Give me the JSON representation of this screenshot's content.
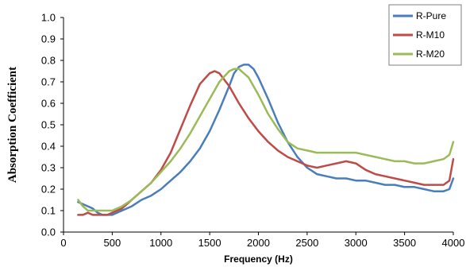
{
  "chart_data": {
    "type": "line",
    "title": "",
    "xlabel": "Frequency (Hz)",
    "ylabel": "Absorption Coefficient",
    "xlim": [
      0,
      4000
    ],
    "ylim": [
      0.0,
      1.0
    ],
    "x_ticks": [
      0,
      500,
      1000,
      1500,
      2000,
      2500,
      3000,
      3500,
      4000
    ],
    "y_ticks": [
      0.0,
      0.1,
      0.2,
      0.3,
      0.4,
      0.5,
      0.6,
      0.7,
      0.8,
      0.9,
      1.0
    ],
    "x_tick_labels": [
      "0",
      "500",
      "1000",
      "1500",
      "2000",
      "2500",
      "3000",
      "3500",
      "4000"
    ],
    "y_tick_labels": [
      "0.0",
      "0.1",
      "0.2",
      "0.3",
      "0.4",
      "0.5",
      "0.6",
      "0.7",
      "0.8",
      "0.9",
      "1.0"
    ],
    "grid": false,
    "legend_position": "top-right",
    "series": [
      {
        "name": "R-Pure",
        "color": "#4A7EBB",
        "x": [
          150,
          200,
          250,
          300,
          350,
          400,
          450,
          500,
          600,
          700,
          800,
          900,
          1000,
          1100,
          1200,
          1300,
          1400,
          1500,
          1600,
          1700,
          1750,
          1800,
          1850,
          1900,
          1950,
          2000,
          2100,
          2200,
          2300,
          2400,
          2500,
          2600,
          2700,
          2800,
          2900,
          3000,
          3100,
          3200,
          3300,
          3400,
          3500,
          3600,
          3700,
          3800,
          3900,
          3960,
          4000
        ],
        "y": [
          0.14,
          0.13,
          0.12,
          0.11,
          0.09,
          0.08,
          0.08,
          0.08,
          0.1,
          0.12,
          0.15,
          0.17,
          0.2,
          0.24,
          0.28,
          0.33,
          0.39,
          0.47,
          0.57,
          0.68,
          0.74,
          0.77,
          0.78,
          0.78,
          0.76,
          0.72,
          0.62,
          0.51,
          0.42,
          0.35,
          0.3,
          0.27,
          0.26,
          0.25,
          0.25,
          0.24,
          0.24,
          0.23,
          0.22,
          0.22,
          0.21,
          0.21,
          0.2,
          0.19,
          0.19,
          0.2,
          0.25
        ]
      },
      {
        "name": "R-M10",
        "color": "#BE4B48",
        "x": [
          150,
          200,
          250,
          300,
          350,
          400,
          450,
          500,
          600,
          700,
          800,
          900,
          1000,
          1100,
          1200,
          1300,
          1400,
          1500,
          1550,
          1600,
          1700,
          1800,
          1900,
          2000,
          2100,
          2200,
          2300,
          2400,
          2500,
          2600,
          2700,
          2800,
          2900,
          3000,
          3100,
          3200,
          3300,
          3400,
          3500,
          3600,
          3700,
          3800,
          3900,
          3960,
          4000
        ],
        "y": [
          0.08,
          0.08,
          0.09,
          0.08,
          0.08,
          0.08,
          0.08,
          0.09,
          0.11,
          0.15,
          0.19,
          0.23,
          0.29,
          0.37,
          0.48,
          0.59,
          0.69,
          0.74,
          0.75,
          0.74,
          0.68,
          0.6,
          0.53,
          0.47,
          0.42,
          0.38,
          0.35,
          0.33,
          0.31,
          0.3,
          0.31,
          0.32,
          0.33,
          0.32,
          0.29,
          0.27,
          0.26,
          0.25,
          0.24,
          0.23,
          0.22,
          0.22,
          0.22,
          0.24,
          0.34
        ]
      },
      {
        "name": "R-M20",
        "color": "#9BBB59",
        "x": [
          150,
          200,
          250,
          300,
          350,
          400,
          450,
          500,
          600,
          700,
          800,
          900,
          1000,
          1100,
          1200,
          1300,
          1400,
          1500,
          1600,
          1700,
          1750,
          1800,
          1900,
          2000,
          2100,
          2200,
          2300,
          2400,
          2500,
          2600,
          2700,
          2800,
          2900,
          3000,
          3100,
          3200,
          3300,
          3400,
          3500,
          3600,
          3700,
          3800,
          3900,
          3960,
          4000
        ],
        "y": [
          0.15,
          0.12,
          0.1,
          0.1,
          0.1,
          0.1,
          0.1,
          0.1,
          0.12,
          0.15,
          0.19,
          0.23,
          0.28,
          0.33,
          0.39,
          0.46,
          0.54,
          0.62,
          0.7,
          0.75,
          0.76,
          0.76,
          0.72,
          0.64,
          0.55,
          0.48,
          0.42,
          0.39,
          0.38,
          0.37,
          0.37,
          0.37,
          0.37,
          0.37,
          0.36,
          0.35,
          0.34,
          0.33,
          0.33,
          0.32,
          0.32,
          0.33,
          0.34,
          0.36,
          0.42
        ]
      }
    ]
  }
}
